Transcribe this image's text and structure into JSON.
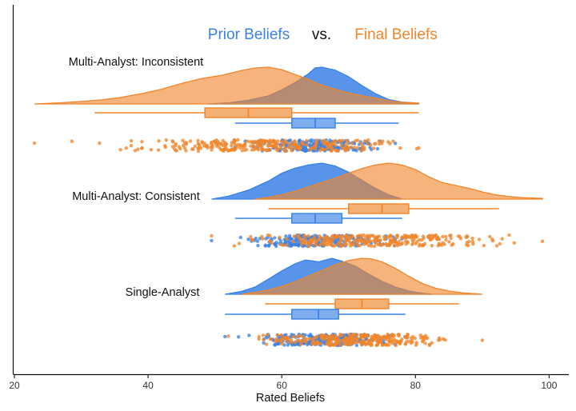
{
  "chart_data": {
    "type": "raincloud",
    "title": {
      "prior": "Prior Beliefs",
      "vs": "vs.",
      "final": "Final Beliefs"
    },
    "xlabel": "Rated Beliefs",
    "ylabel": "",
    "xlim": [
      19,
      103
    ],
    "xticks": [
      20,
      40,
      60,
      80,
      100
    ],
    "colors": {
      "prior": "#3b82e6",
      "final": "#f0852a",
      "axis": "#111111"
    },
    "series_names": [
      "Prior Beliefs",
      "Final Beliefs"
    ],
    "groups": [
      {
        "label": "Multi-Analyst: Inconsistent",
        "prior": {
          "density": {
            "x": [
              49,
              52,
              55,
              58,
              60,
              62,
              64,
              65,
              66,
              68,
              70,
              72,
              74,
              76,
              78,
              80.5
            ],
            "y": [
              0.0,
              0.03,
              0.1,
              0.22,
              0.38,
              0.58,
              0.82,
              0.98,
              1.0,
              0.92,
              0.74,
              0.5,
              0.28,
              0.12,
              0.05,
              0.02
            ]
          },
          "box": {
            "min": 53,
            "q1": 61.5,
            "median": 65,
            "q3": 68,
            "max": 77.5
          },
          "points": {
            "range": [
              53,
              77
            ],
            "center": 65,
            "n": 220
          }
        },
        "final": {
          "density": {
            "x": [
              23,
              27,
              30,
              33,
              36,
              39,
              42,
              45,
              48,
              51,
              54,
              56,
              58,
              60,
              62,
              64,
              66,
              68,
              70,
              72,
              74,
              76,
              78,
              80.5
            ],
            "y": [
              0.0,
              0.03,
              0.06,
              0.1,
              0.16,
              0.25,
              0.36,
              0.5,
              0.62,
              0.7,
              0.82,
              0.88,
              0.9,
              0.84,
              0.72,
              0.6,
              0.46,
              0.36,
              0.27,
              0.2,
              0.14,
              0.08,
              0.04,
              0.02
            ]
          },
          "box": {
            "min": 32,
            "q1": 48.5,
            "median": 55,
            "q3": 61.5,
            "max": 80.5
          },
          "points": {
            "range": [
              23,
              80.5
            ],
            "center": 57,
            "n": 300
          }
        }
      },
      {
        "label": "Multi-Analyst: Consistent",
        "prior": {
          "density": {
            "x": [
              49.5,
              52,
              55,
              58,
              60,
              62,
              64,
              66,
              68,
              70,
              72,
              74,
              76,
              78
            ],
            "y": [
              0.0,
              0.08,
              0.25,
              0.5,
              0.72,
              0.86,
              0.95,
              1.0,
              0.92,
              0.75,
              0.52,
              0.3,
              0.12,
              0.0
            ]
          },
          "box": {
            "min": 53,
            "q1": 61.5,
            "median": 65,
            "q3": 69,
            "max": 78
          },
          "points": {
            "range": [
              49.5,
              78
            ],
            "center": 65,
            "n": 220
          }
        },
        "final": {
          "density": {
            "x": [
              56,
              58,
              60,
              62,
              64,
              66,
              68,
              70,
              72,
              74,
              76,
              78,
              80,
              82,
              84,
              86,
              88,
              90,
              92,
              94,
              96,
              99
            ],
            "y": [
              0.0,
              0.05,
              0.12,
              0.22,
              0.34,
              0.46,
              0.58,
              0.72,
              0.85,
              0.95,
              1.0,
              0.95,
              0.82,
              0.62,
              0.46,
              0.38,
              0.3,
              0.2,
              0.12,
              0.07,
              0.04,
              0.02
            ]
          },
          "box": {
            "min": 58,
            "q1": 70,
            "median": 75,
            "q3": 79,
            "max": 92.5
          },
          "points": {
            "range": [
              49.5,
              99
            ],
            "center": 74,
            "n": 300
          }
        }
      },
      {
        "label": "Single-Analyst",
        "prior": {
          "density": {
            "x": [
              51.5,
              54,
              56,
              58,
              60,
              62,
              63.5,
              64.5,
              65.5,
              66.5,
              67.5,
              69,
              71,
              73,
              75,
              77,
              79,
              80.5,
              82.5
            ],
            "y": [
              0.0,
              0.08,
              0.2,
              0.42,
              0.65,
              0.85,
              0.95,
              0.93,
              0.9,
              0.95,
              1.0,
              0.92,
              0.78,
              0.56,
              0.36,
              0.2,
              0.09,
              0.04,
              0.0
            ]
          },
          "box": {
            "min": 51.5,
            "q1": 61.5,
            "median": 65.5,
            "q3": 68.5,
            "max": 78.5
          },
          "points": {
            "range": [
              51.5,
              78.5
            ],
            "center": 66,
            "n": 220
          }
        },
        "final": {
          "density": {
            "x": [
              54,
              56,
              58,
              60,
              62,
              64,
              66,
              68,
              70,
              72,
              73.5,
              75,
              77,
              79,
              81,
              83,
              85,
              87,
              90
            ],
            "y": [
              0.0,
              0.05,
              0.12,
              0.22,
              0.35,
              0.5,
              0.66,
              0.82,
              0.94,
              1.0,
              0.98,
              0.9,
              0.72,
              0.5,
              0.3,
              0.17,
              0.09,
              0.04,
              0.0
            ]
          },
          "box": {
            "min": 57.5,
            "q1": 68,
            "median": 72,
            "q3": 76,
            "max": 86.5
          },
          "points": {
            "range": [
              52,
              90
            ],
            "center": 71,
            "n": 300
          }
        }
      }
    ]
  }
}
